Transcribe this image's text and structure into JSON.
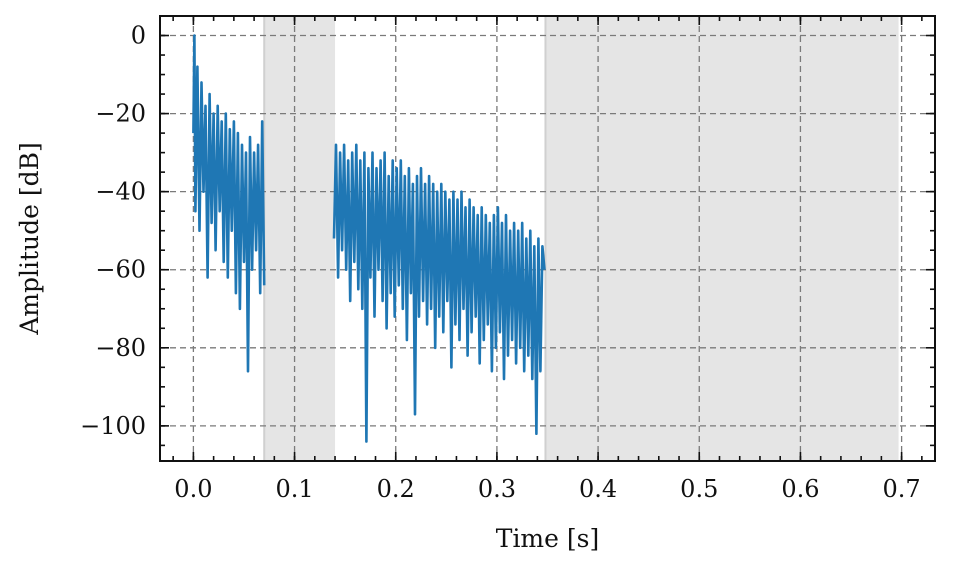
{
  "chart_data": {
    "type": "line",
    "xlabel": "Time [s]",
    "ylabel": "Amplitude [dB]",
    "xlim": [
      -0.033,
      0.733
    ],
    "ylim": [
      -109,
      5
    ],
    "x_ticks": [
      0.0,
      0.1,
      0.2,
      0.3,
      0.4,
      0.5,
      0.6,
      0.7
    ],
    "x_tick_labels": [
      "0.0",
      "0.1",
      "0.2",
      "0.3",
      "0.4",
      "0.5",
      "0.6",
      "0.7"
    ],
    "y_ticks": [
      0,
      -20,
      -40,
      -60,
      -80,
      -100
    ],
    "y_tick_labels": [
      "0",
      "−20",
      "−40",
      "−60",
      "−80",
      "−100"
    ],
    "x_minor_step": 0.02,
    "y_minor_step": 5,
    "grid": true,
    "legend": "none",
    "shaded_regions": [
      {
        "x_start": 0.07,
        "x_end": 0.14
      },
      {
        "x_start": 0.348,
        "x_end": 0.697
      }
    ],
    "colors": {
      "series": "#1f77b4",
      "shade": "#e5e5e5",
      "grid": "#7a7a7a"
    },
    "series": [
      {
        "segments": [
          {
            "x": [
              0.0,
              0.001,
              0.002,
              0.004,
              0.006,
              0.008,
              0.01,
              0.012,
              0.014,
              0.016,
              0.018,
              0.02,
              0.022,
              0.024,
              0.026,
              0.028,
              0.03,
              0.032,
              0.034,
              0.036,
              0.038,
              0.04,
              0.042,
              0.044,
              0.046,
              0.048,
              0.05,
              0.052,
              0.054,
              0.056,
              0.058,
              0.06,
              0.062,
              0.064,
              0.066,
              0.068,
              0.07
            ],
            "y": [
              -25,
              0,
              -45,
              -8,
              -50,
              -12,
              -40,
              -18,
              -62,
              -15,
              -48,
              -20,
              -55,
              -18,
              -45,
              -22,
              -58,
              -20,
              -62,
              -24,
              -50,
              -22,
              -66,
              -25,
              -70,
              -28,
              -58,
              -30,
              -86,
              -26,
              -60,
              -30,
              -55,
              -28,
              -66,
              -22,
              -64
            ]
          },
          {
            "x": [
              0.139,
              0.141,
              0.143,
              0.145,
              0.147,
              0.149,
              0.151,
              0.153,
              0.155,
              0.157,
              0.159,
              0.161,
              0.163,
              0.165,
              0.167,
              0.169,
              0.171,
              0.173,
              0.175,
              0.177,
              0.179,
              0.181,
              0.183,
              0.185,
              0.187,
              0.189,
              0.191,
              0.193,
              0.195,
              0.197,
              0.199,
              0.201,
              0.203,
              0.205,
              0.207,
              0.209,
              0.211,
              0.213,
              0.215,
              0.217,
              0.219,
              0.221,
              0.223,
              0.225,
              0.227,
              0.229,
              0.231,
              0.233,
              0.235,
              0.237,
              0.239,
              0.241,
              0.243,
              0.245,
              0.247,
              0.249,
              0.251,
              0.253,
              0.255,
              0.257,
              0.259,
              0.261,
              0.263,
              0.265,
              0.267,
              0.269,
              0.271,
              0.273,
              0.275,
              0.277,
              0.279,
              0.281,
              0.283,
              0.285,
              0.287,
              0.289,
              0.291,
              0.293,
              0.295,
              0.297,
              0.299,
              0.301,
              0.303,
              0.305,
              0.307,
              0.309,
              0.311,
              0.313,
              0.315,
              0.317,
              0.319,
              0.321,
              0.323,
              0.325,
              0.327,
              0.329,
              0.331,
              0.333,
              0.335,
              0.337,
              0.339,
              0.341,
              0.343,
              0.345,
              0.347
            ],
            "y": [
              -52,
              -28,
              -62,
              -30,
              -55,
              -28,
              -60,
              -32,
              -68,
              -30,
              -58,
              -28,
              -65,
              -32,
              -70,
              -30,
              -104,
              -34,
              -62,
              -30,
              -72,
              -34,
              -60,
              -32,
              -68,
              -30,
              -75,
              -36,
              -66,
              -32,
              -72,
              -34,
              -64,
              -32,
              -70,
              -36,
              -78,
              -34,
              -66,
              -38,
              -97,
              -36,
              -72,
              -34,
              -68,
              -38,
              -74,
              -36,
              -70,
              -38,
              -80,
              -40,
              -72,
              -38,
              -76,
              -40,
              -68,
              -42,
              -85,
              -40,
              -74,
              -42,
              -78,
              -40,
              -70,
              -44,
              -82,
              -42,
              -76,
              -44,
              -72,
              -46,
              -84,
              -44,
              -78,
              -46,
              -74,
              -48,
              -86,
              -46,
              -80,
              -44,
              -76,
              -48,
              -88,
              -46,
              -82,
              -50,
              -78,
              -48,
              -84,
              -50,
              -80,
              -48,
              -86,
              -52,
              -82,
              -50,
              -88,
              -54,
              -102,
              -52,
              -86,
              -54,
              -60
            ]
          }
        ]
      }
    ]
  }
}
